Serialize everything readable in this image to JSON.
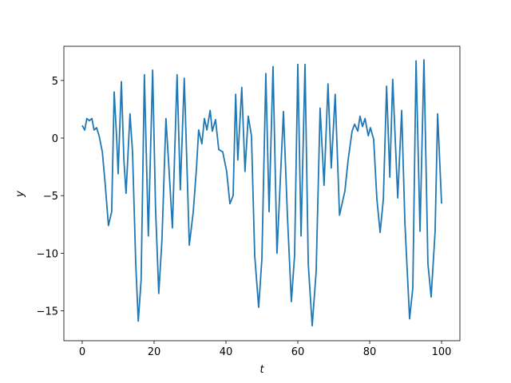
{
  "chart_data": {
    "type": "line",
    "xlabel": "t",
    "ylabel": "y",
    "x": [
      0,
      0.7,
      1.3,
      2,
      2.7,
      3.3,
      4,
      4.7,
      5.6,
      6.4,
      7.3,
      8.2,
      8.9,
      9.6,
      10,
      10.9,
      11.6,
      12.2,
      13.3,
      14,
      14.9,
      15.6,
      16.4,
      17.3,
      18.4,
      19.6,
      20.4,
      21.3,
      22.2,
      23.3,
      24,
      25.1,
      26.4,
      27.3,
      28.4,
      29.1,
      29.8,
      30.9,
      31.8,
      32.4,
      33.3,
      34,
      34.7,
      35.6,
      36.2,
      37.1,
      38,
      39.1,
      40.2,
      41.1,
      42,
      42.7,
      43.3,
      44.4,
      45.3,
      46.2,
      47.1,
      48,
      49.1,
      50,
      51.1,
      52,
      53.1,
      54.2,
      56,
      57.1,
      58.2,
      59.1,
      60,
      60.9,
      62,
      62.9,
      64,
      65.1,
      66.2,
      67.3,
      68.4,
      69.3,
      70.4,
      71.6,
      73.1,
      74,
      75.1,
      75.8,
      76.7,
      77.3,
      78,
      78.7,
      79.6,
      80.2,
      81.1,
      82,
      82.9,
      83.8,
      84.7,
      85.6,
      86.4,
      87.8,
      88.9,
      89.8,
      91.1,
      92,
      92.9,
      94,
      95.1,
      96.2,
      97.1,
      98.2,
      98.9,
      100
    ],
    "series": [
      {
        "color": "#1f77b4",
        "values": [
          1.1,
          0.7,
          1.7,
          1.5,
          1.7,
          0.7,
          0.9,
          0.2,
          -1.2,
          -4,
          -7.6,
          -6.4,
          4,
          -0.1,
          -3.1,
          4.9,
          -1.9,
          -4.8,
          2.1,
          -1.2,
          -10.9,
          -15.9,
          -12.3,
          5.5,
          -8.5,
          5.9,
          -6,
          -13.5,
          -8.8,
          1.7,
          -1.9,
          -7.8,
          5.5,
          -4.5,
          5.2,
          -1.9,
          -9.3,
          -6.4,
          -2.6,
          0.7,
          -0.5,
          1.7,
          0.7,
          2.4,
          0.6,
          1.6,
          -1,
          -1.2,
          -2.9,
          -5.7,
          -5,
          3.8,
          -1.9,
          4.4,
          -2.9,
          1.9,
          0.2,
          -10.2,
          -14.7,
          -10.5,
          5.6,
          -6.4,
          6.2,
          -10,
          2.3,
          -6.7,
          -14.2,
          -10.2,
          6.4,
          -8.5,
          6.4,
          -10.9,
          -16.3,
          -11.6,
          2.6,
          -4.1,
          4.7,
          -2.6,
          3.8,
          -6.7,
          -4.6,
          -1.9,
          0.6,
          1.2,
          0.6,
          1.9,
          1,
          1.7,
          0.2,
          0.9,
          -0.1,
          -5.3,
          -8.2,
          -5.3,
          4.5,
          -3.4,
          5.1,
          -5.2,
          2.4,
          -7.4,
          -15.7,
          -13,
          6.7,
          -8.1,
          6.8,
          -10.9,
          -13.8,
          -8.1,
          2.1,
          -5.7
        ]
      }
    ],
    "xlim": [
      -5.1,
      105.1
    ],
    "ylim": [
      -17.6,
      7.97
    ],
    "xticks": [
      0,
      20,
      40,
      60,
      80,
      100
    ],
    "yticks": [
      {
        "value": -15,
        "label": "−15"
      },
      {
        "value": -10,
        "label": "−10"
      },
      {
        "value": -5,
        "label": "−5"
      },
      0,
      5
    ]
  }
}
